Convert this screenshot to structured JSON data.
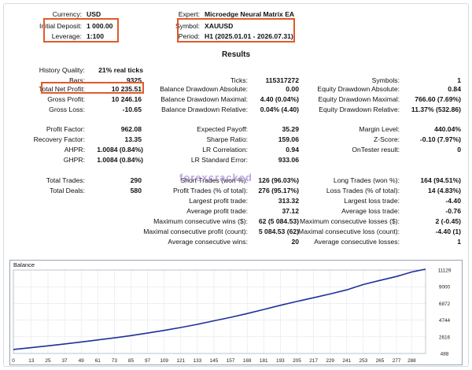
{
  "header_left": {
    "currency": {
      "label": "Currency:",
      "value": "USD"
    },
    "initial_deposit": {
      "label": "Initial Deposit:",
      "value": "1 000.00"
    },
    "leverage": {
      "label": "Leverage:",
      "value": "1:100"
    }
  },
  "header_right": {
    "expert": {
      "label": "Expert:",
      "value": "Microedge Neural Matrix EA"
    },
    "symbol": {
      "label": "Symbol:",
      "value": "XAUUSD"
    },
    "period": {
      "label": "Period:",
      "value": "H1 (2025.01.01 - 2026.07.31)"
    }
  },
  "results_title": "Results",
  "col1": {
    "history_quality": {
      "label": "History Quality:",
      "value": "21% real ticks"
    },
    "bars": {
      "label": "Bars:",
      "value": "9325"
    },
    "total_net_profit": {
      "label": "Total Net Profit:",
      "value": "10 235.51"
    },
    "gross_profit": {
      "label": "Gross Profit:",
      "value": "10 246.16"
    },
    "gross_loss": {
      "label": "Gross Loss:",
      "value": "-10.65"
    },
    "profit_factor": {
      "label": "Profit Factor:",
      "value": "962.08"
    },
    "recovery_factor": {
      "label": "Recovery Factor:",
      "value": "13.35"
    },
    "ahpr": {
      "label": "AHPR:",
      "value": "1.0084 (0.84%)"
    },
    "ghpr": {
      "label": "GHPR:",
      "value": "1.0084 (0.84%)"
    },
    "total_trades": {
      "label": "Total Trades:",
      "value": "290"
    },
    "total_deals": {
      "label": "Total Deals:",
      "value": "580"
    }
  },
  "col2": {
    "ticks": {
      "label": "Ticks:",
      "value": "115317272"
    },
    "bal_dd_abs": {
      "label": "Balance Drawdown Absolute:",
      "value": "0.00"
    },
    "bal_dd_max": {
      "label": "Balance Drawdown Maximal:",
      "value": "4.40 (0.04%)"
    },
    "bal_dd_rel": {
      "label": "Balance Drawdown Relative:",
      "value": "0.04% (4.40)"
    },
    "expected_payoff": {
      "label": "Expected Payoff:",
      "value": "35.29"
    },
    "sharpe": {
      "label": "Sharpe Ratio:",
      "value": "159.06"
    },
    "lr_corr": {
      "label": "LR Correlation:",
      "value": "0.94"
    },
    "lr_err": {
      "label": "LR Standard Error:",
      "value": "933.06"
    },
    "short_trades": {
      "label": "Short Trades (won %):",
      "value": "126 (96.03%)"
    },
    "profit_trades": {
      "label": "Profit Trades (% of total):",
      "value": "276 (95.17%)"
    },
    "largest_profit": {
      "label": "Largest profit trade:",
      "value": "313.32"
    },
    "avg_profit": {
      "label": "Average profit trade:",
      "value": "37.12"
    },
    "max_cons_wins": {
      "label": "Maximum consecutive wins ($):",
      "value": "62 (5 084.53)"
    },
    "maximal_cons_profit": {
      "label": "Maximal consecutive profit (count):",
      "value": "5 084.53 (62)"
    },
    "avg_cons_wins": {
      "label": "Average consecutive wins:",
      "value": "20"
    }
  },
  "col3": {
    "symbols": {
      "label": "Symbols:",
      "value": "1"
    },
    "eq_dd_abs": {
      "label": "Equity Drawdown Absolute:",
      "value": "0.84"
    },
    "eq_dd_max": {
      "label": "Equity Drawdown Maximal:",
      "value": "766.60 (7.69%)"
    },
    "eq_dd_rel": {
      "label": "Equity Drawdown Relative:",
      "value": "11.37% (532.86)"
    },
    "margin_level": {
      "label": "Margin Level:",
      "value": "440.04%"
    },
    "z_score": {
      "label": "Z-Score:",
      "value": "-0.10 (7.97%)"
    },
    "ontester": {
      "label": "OnTester result:",
      "value": "0"
    },
    "long_trades": {
      "label": "Long Trades (won %):",
      "value": "164 (94.51%)"
    },
    "loss_trades": {
      "label": "Loss Trades (% of total):",
      "value": "14 (4.83%)"
    },
    "largest_loss": {
      "label": "Largest loss trade:",
      "value": "-4.40"
    },
    "avg_loss": {
      "label": "Average loss trade:",
      "value": "-0.76"
    },
    "max_cons_losses": {
      "label": "Maximum consecutive losses ($):",
      "value": "2 (-0.45)"
    },
    "maximal_cons_loss": {
      "label": "Maximal consecutive loss (count):",
      "value": "-4.40 (1)"
    },
    "avg_cons_losses": {
      "label": "Average consecutive losses:",
      "value": "1"
    }
  },
  "watermark": "forexcracked",
  "colors": {
    "highlight": "#e05a2a",
    "balance_line": "#1f2f9a"
  },
  "chart_data": {
    "type": "line",
    "title": "Balance",
    "x_ticks": [
      0,
      13,
      25,
      37,
      49,
      61,
      73,
      85,
      97,
      109,
      121,
      133,
      145,
      157,
      169,
      181,
      193,
      205,
      217,
      229,
      241,
      253,
      265,
      277,
      288
    ],
    "y_ticks": [
      488,
      2616,
      4744,
      6872,
      9000,
      11129
    ],
    "xlim": [
      0,
      298
    ],
    "ylim": [
      488,
      11129
    ],
    "series": [
      {
        "values_x": [
          0,
          13,
          25,
          37,
          49,
          61,
          73,
          85,
          97,
          109,
          121,
          133,
          145,
          157,
          169,
          181,
          193,
          205,
          217,
          229,
          241,
          253,
          265,
          277,
          288,
          298
        ],
        "values_y": [
          1000,
          1230,
          1460,
          1700,
          1950,
          2210,
          2480,
          2770,
          3090,
          3430,
          3800,
          4200,
          4650,
          5100,
          5580,
          6100,
          6630,
          7120,
          7600,
          8080,
          8600,
          9280,
          9800,
          10310,
          10880,
          11235
        ]
      }
    ]
  }
}
